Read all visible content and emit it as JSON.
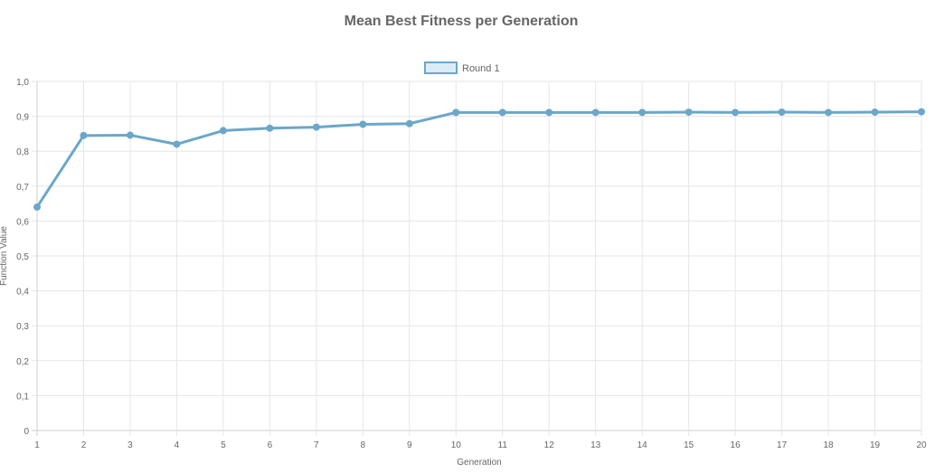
{
  "chart_data": {
    "type": "line",
    "title": "Mean Best Fitness per Generation",
    "xlabel": "Generation",
    "ylabel": "Function Value",
    "x": [
      "1",
      "2",
      "3",
      "4",
      "5",
      "6",
      "7",
      "8",
      "9",
      "10",
      "11",
      "12",
      "13",
      "14",
      "15",
      "16",
      "17",
      "18",
      "19",
      "20"
    ],
    "ylim": [
      0,
      1
    ],
    "y_ticks": [
      "0",
      "0,1",
      "0,2",
      "0,3",
      "0,4",
      "0,5",
      "0,6",
      "0,7",
      "0,8",
      "0,9",
      "1,0"
    ],
    "grid": true,
    "legend_position": "top",
    "series": [
      {
        "name": "Round 1",
        "color": "#6aa7c9",
        "fill": "#dcecf6",
        "values": [
          0.64,
          0.845,
          0.846,
          0.82,
          0.859,
          0.866,
          0.869,
          0.877,
          0.879,
          0.911,
          0.911,
          0.911,
          0.911,
          0.911,
          0.912,
          0.911,
          0.912,
          0.911,
          0.912,
          0.913
        ]
      }
    ]
  }
}
